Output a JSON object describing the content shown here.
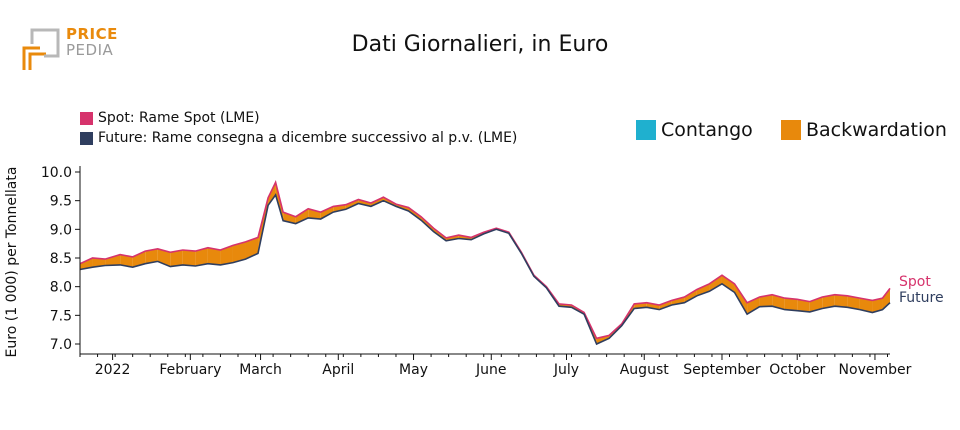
{
  "logo": {
    "line1": "PRICE",
    "line2": "PEDIA"
  },
  "colors": {
    "spot": "#d6336c",
    "future": "#2f3e5f",
    "contango": "#1fb0cf",
    "backwardation": "#e8890c",
    "axis": "#111111"
  },
  "chart_data": {
    "type": "area",
    "title": "Dati Giornalieri, in Euro",
    "ylabel": "Euro (1 000) per Tonnellata",
    "xlabel": "",
    "ylim": [
      6.9,
      10.0
    ],
    "yticks": [
      "7.0",
      "7.5",
      "8.0",
      "8.5",
      "9.0",
      "9.5",
      "10.0"
    ],
    "x_range": [
      "2021-12-19",
      "2022-11-07"
    ],
    "xticks": [
      {
        "date": "2022-01-01",
        "label": "2022"
      },
      {
        "date": "2022-02-01",
        "label": "February"
      },
      {
        "date": "2022-03-01",
        "label": "March"
      },
      {
        "date": "2022-04-01",
        "label": "April"
      },
      {
        "date": "2022-05-01",
        "label": "May"
      },
      {
        "date": "2022-06-01",
        "label": "June"
      },
      {
        "date": "2022-07-01",
        "label": "July"
      },
      {
        "date": "2022-08-01",
        "label": "August"
      },
      {
        "date": "2022-09-01",
        "label": "September"
      },
      {
        "date": "2022-10-01",
        "label": "October"
      },
      {
        "date": "2022-11-01",
        "label": "November"
      }
    ],
    "legend": {
      "spot_label": "Spot: Rame Spot (LME)",
      "future_label": "Future: Rame consegna a dicembre successivo al p.v. (LME)",
      "contango_label": "Contango",
      "backwardation_label": "Backwardation"
    },
    "end_labels": {
      "spot": "Spot",
      "future": "Future"
    },
    "x": [
      "2021-12-19",
      "2021-12-24",
      "2021-12-29",
      "2022-01-04",
      "2022-01-09",
      "2022-01-14",
      "2022-01-19",
      "2022-01-24",
      "2022-01-29",
      "2022-02-03",
      "2022-02-08",
      "2022-02-13",
      "2022-02-18",
      "2022-02-23",
      "2022-02-28",
      "2022-03-04",
      "2022-03-07",
      "2022-03-10",
      "2022-03-15",
      "2022-03-20",
      "2022-03-25",
      "2022-03-30",
      "2022-04-04",
      "2022-04-09",
      "2022-04-14",
      "2022-04-19",
      "2022-04-24",
      "2022-04-29",
      "2022-05-04",
      "2022-05-09",
      "2022-05-14",
      "2022-05-19",
      "2022-05-24",
      "2022-05-29",
      "2022-06-03",
      "2022-06-08",
      "2022-06-13",
      "2022-06-18",
      "2022-06-23",
      "2022-06-28",
      "2022-07-03",
      "2022-07-08",
      "2022-07-13",
      "2022-07-18",
      "2022-07-23",
      "2022-07-28",
      "2022-08-02",
      "2022-08-07",
      "2022-08-12",
      "2022-08-17",
      "2022-08-22",
      "2022-08-27",
      "2022-09-01",
      "2022-09-06",
      "2022-09-11",
      "2022-09-16",
      "2022-09-21",
      "2022-09-26",
      "2022-10-01",
      "2022-10-06",
      "2022-10-11",
      "2022-10-16",
      "2022-10-21",
      "2022-10-26",
      "2022-10-31",
      "2022-11-04",
      "2022-11-07"
    ],
    "series": [
      {
        "name": "Spot",
        "values": [
          8.4,
          8.5,
          8.48,
          8.56,
          8.52,
          8.62,
          8.66,
          8.6,
          8.64,
          8.62,
          8.68,
          8.64,
          8.72,
          8.78,
          8.86,
          9.55,
          9.82,
          9.3,
          9.22,
          9.36,
          9.3,
          9.4,
          9.43,
          9.52,
          9.46,
          9.56,
          9.44,
          9.38,
          9.22,
          9.02,
          8.85,
          8.9,
          8.86,
          8.95,
          9.02,
          8.95,
          8.6,
          8.2,
          8.0,
          7.7,
          7.68,
          7.55,
          7.1,
          7.15,
          7.35,
          7.7,
          7.72,
          7.68,
          7.76,
          7.82,
          7.95,
          8.05,
          8.2,
          8.05,
          7.72,
          7.82,
          7.86,
          7.8,
          7.78,
          7.74,
          7.82,
          7.86,
          7.84,
          7.8,
          7.76,
          7.8,
          7.97
        ]
      },
      {
        "name": "Future",
        "values": [
          8.3,
          8.34,
          8.37,
          8.38,
          8.34,
          8.4,
          8.44,
          8.35,
          8.38,
          8.36,
          8.4,
          8.38,
          8.42,
          8.48,
          8.58,
          9.42,
          9.6,
          9.15,
          9.1,
          9.2,
          9.18,
          9.3,
          9.35,
          9.45,
          9.4,
          9.5,
          9.4,
          9.32,
          9.16,
          8.96,
          8.8,
          8.84,
          8.82,
          8.92,
          9.0,
          8.93,
          8.58,
          8.18,
          7.98,
          7.66,
          7.64,
          7.52,
          7.0,
          7.1,
          7.32,
          7.62,
          7.64,
          7.6,
          7.68,
          7.72,
          7.84,
          7.92,
          8.05,
          7.9,
          7.52,
          7.65,
          7.66,
          7.6,
          7.58,
          7.56,
          7.62,
          7.66,
          7.64,
          7.6,
          7.55,
          7.6,
          7.72
        ]
      }
    ]
  }
}
